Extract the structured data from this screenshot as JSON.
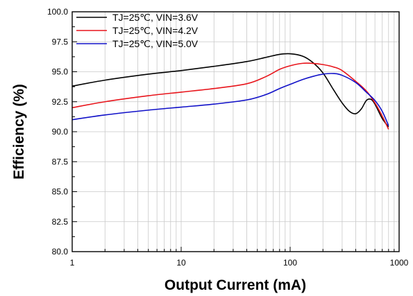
{
  "chart_data": {
    "type": "line",
    "title": "",
    "xlabel": "Output Current (mA)",
    "ylabel": "Efficiency (%)",
    "xscale": "log",
    "xlim": [
      1,
      1000
    ],
    "ylim": [
      80.0,
      100.0
    ],
    "x_ticks": [
      1,
      10,
      100,
      1000
    ],
    "x_tick_labels": [
      "1",
      "10",
      "100",
      "1000"
    ],
    "y_ticks": [
      80.0,
      82.5,
      85.0,
      87.5,
      90.0,
      92.5,
      95.0,
      97.5,
      100.0
    ],
    "y_tick_labels": [
      "80.0",
      "82.5",
      "85.0",
      "87.5",
      "90.0",
      "92.5",
      "95.0",
      "97.5",
      "100.0"
    ],
    "grid": true,
    "legend_position": "top-left",
    "series": [
      {
        "name": "TJ=25℃, VIN=3.6V",
        "color": "#000000",
        "x": [
          1,
          2,
          5,
          10,
          20,
          40,
          60,
          80,
          100,
          130,
          160,
          200,
          250,
          300,
          350,
          400,
          450,
          500,
          550,
          600,
          700,
          800
        ],
        "y": [
          93.8,
          94.3,
          94.8,
          95.1,
          95.45,
          95.85,
          96.2,
          96.45,
          96.5,
          96.3,
          95.8,
          94.9,
          93.5,
          92.4,
          91.7,
          91.5,
          91.9,
          92.6,
          92.7,
          92.3,
          91.1,
          90.4
        ]
      },
      {
        "name": "TJ=25℃, VIN=4.2V",
        "color": "#e8141b",
        "x": [
          1,
          2,
          5,
          10,
          20,
          40,
          60,
          80,
          100,
          130,
          160,
          200,
          250,
          300,
          400,
          500,
          600,
          700,
          800
        ],
        "y": [
          92.0,
          92.5,
          93.0,
          93.3,
          93.6,
          94.0,
          94.6,
          95.2,
          95.5,
          95.7,
          95.7,
          95.6,
          95.4,
          95.1,
          94.2,
          93.4,
          92.4,
          91.3,
          90.2
        ]
      },
      {
        "name": "TJ=25℃, VIN=5.0V",
        "color": "#1010c8",
        "x": [
          1,
          2,
          5,
          10,
          20,
          40,
          60,
          80,
          100,
          130,
          160,
          200,
          250,
          300,
          400,
          500,
          600,
          700,
          800
        ],
        "y": [
          91.0,
          91.4,
          91.8,
          92.05,
          92.3,
          92.65,
          93.1,
          93.6,
          93.95,
          94.35,
          94.6,
          94.8,
          94.85,
          94.7,
          94.1,
          93.3,
          92.6,
          91.7,
          90.5
        ]
      }
    ]
  }
}
